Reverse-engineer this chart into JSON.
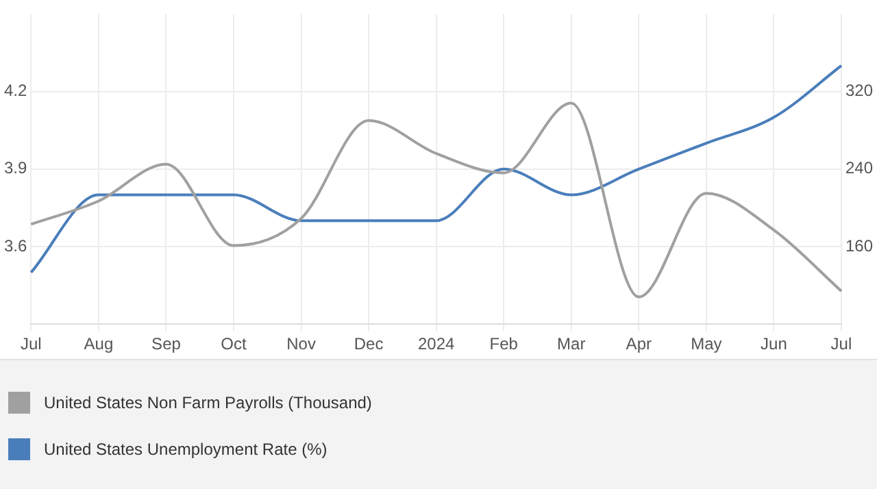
{
  "chart_data": {
    "type": "line",
    "categories": [
      "Jul",
      "Aug",
      "Sep",
      "Oct",
      "Nov",
      "Dec",
      "2024",
      "Feb",
      "Mar",
      "Apr",
      "May",
      "Jun",
      "Jul"
    ],
    "series": [
      {
        "name": "United States Non Farm Payrolls (Thousand)",
        "color": "#a0a0a0",
        "axis": "y2",
        "values": [
          183,
          207,
          245,
          161,
          189,
          290,
          256,
          236,
          308,
          108,
          215,
          177,
          114
        ]
      },
      {
        "name": "United States Unemployment Rate (%)",
        "color": "#4a7ebb",
        "values": [
          3.5,
          3.8,
          3.8,
          3.8,
          3.7,
          3.7,
          3.7,
          3.9,
          3.8,
          3.9,
          4.0,
          4.1,
          4.3
        ]
      }
    ],
    "ylim": [
      3.3,
      4.5
    ],
    "yticks": [
      3.6,
      3.9,
      4.2
    ],
    "y2lim": [
      80,
      400
    ],
    "y2ticks": [
      160,
      240,
      320
    ],
    "grid": true,
    "legend": "bottom",
    "marker": "none",
    "line_style": "solid"
  }
}
